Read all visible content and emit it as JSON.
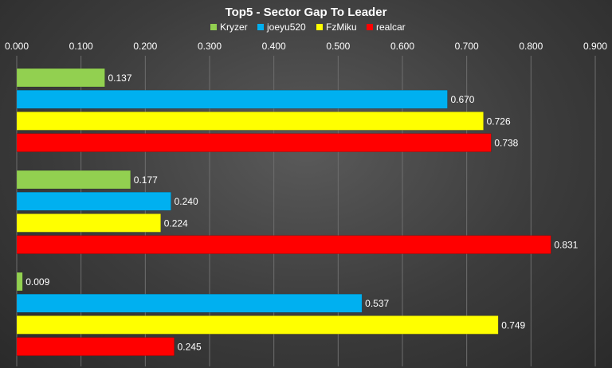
{
  "chart_data": {
    "type": "bar",
    "orientation": "horizontal",
    "title": "Top5 - Sector Gap To Leader",
    "xlabel": "",
    "ylabel": "",
    "xlim": [
      0,
      0.9
    ],
    "ticks": [
      "0.000",
      "0.100",
      "0.200",
      "0.300",
      "0.400",
      "0.500",
      "0.600",
      "0.700",
      "0.800",
      "0.900"
    ],
    "grid": true,
    "legend_position": "top",
    "categories": [
      "",
      "",
      ""
    ],
    "series": [
      {
        "name": "Kryzer",
        "color": "#92d050",
        "values": [
          0.137,
          0.177,
          0.009
        ],
        "labels": [
          "0.137",
          "0.177",
          "0.009"
        ]
      },
      {
        "name": "joeyu520",
        "color": "#00b0f0",
        "values": [
          0.67,
          0.24,
          0.537
        ],
        "labels": [
          "0.670",
          "0.240",
          "0.537"
        ]
      },
      {
        "name": "FzMiku",
        "color": "#ffff00",
        "values": [
          0.726,
          0.224,
          0.749
        ],
        "labels": [
          "0.726",
          "0.224",
          "0.749"
        ]
      },
      {
        "name": "realcar",
        "color": "#ff0000",
        "values": [
          0.738,
          0.831,
          0.245
        ],
        "labels": [
          "0.738",
          "0.831",
          "0.245"
        ]
      }
    ]
  }
}
